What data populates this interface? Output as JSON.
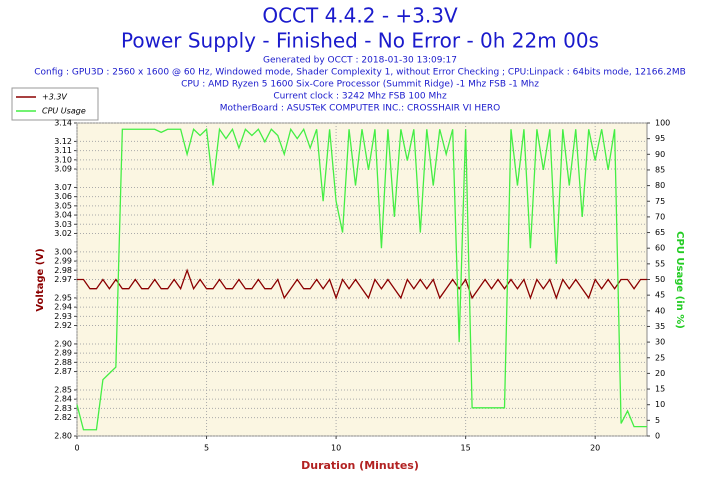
{
  "chart_data": {
    "type": "line",
    "title": [
      "OCCT 4.4.2 - +3.3V",
      "Power Supply - Finished - No Error - 0h 22m 00s"
    ],
    "subtitle": [
      "Generated by OCCT : 2018-01-30 13:09:17",
      "Config : GPU3D : 2560 x 1600 @ 60 Hz, Windowed mode, Shader Complexity 1, without Error Checking ; CPU:Linpack : 64bits mode, 12166.2MB",
      "CPU : AMD Ryzen 5 1600 Six-Core Processor (Summit Ridge) -1 Mhz FSB -1 Mhz",
      "Current clock : 3242 Mhz FSB 100 Mhz",
      "MotherBoard : ASUSTeK COMPUTER INC.: CROSSHAIR VI HERO"
    ],
    "xlabel": "Duration (Minutes)",
    "ylabel": "Voltage (V)",
    "y2label": "CPU Usage (in %)",
    "xlim": [
      0,
      22
    ],
    "xticks": [
      0,
      5,
      10,
      15,
      20
    ],
    "ylim": [
      2.8,
      3.14
    ],
    "yticks": [
      {
        "value": 2.8,
        "label": "2.80"
      },
      2.82,
      2.83,
      2.84,
      2.85,
      2.87,
      2.88,
      2.89,
      {
        "value": 2.9,
        "label": "2.90"
      },
      2.92,
      2.93,
      2.94,
      2.95,
      2.97,
      2.98,
      2.99,
      {
        "value": 3.0,
        "label": "3.00"
      },
      3.02,
      3.03,
      3.04,
      3.05,
      3.06,
      3.07,
      3.09,
      {
        "value": 3.1,
        "label": "3.10"
      },
      3.11,
      3.12,
      3.14
    ],
    "y2lim": [
      0,
      100
    ],
    "y2ticks": [
      0,
      5,
      10,
      15,
      20,
      25,
      30,
      35,
      40,
      45,
      50,
      55,
      60,
      65,
      70,
      75,
      80,
      85,
      90,
      95,
      100
    ],
    "grid": true,
    "x": [
      0,
      0.25,
      0.5,
      0.75,
      1,
      1.25,
      1.5,
      1.75,
      2,
      2.25,
      2.5,
      2.75,
      3,
      3.25,
      3.5,
      3.75,
      4,
      4.25,
      4.5,
      4.75,
      5,
      5.25,
      5.5,
      5.75,
      6,
      6.25,
      6.5,
      6.75,
      7,
      7.25,
      7.5,
      7.75,
      8,
      8.25,
      8.5,
      8.75,
      9,
      9.25,
      9.5,
      9.75,
      10,
      10.25,
      10.5,
      10.75,
      11,
      11.25,
      11.5,
      11.75,
      12,
      12.25,
      12.5,
      12.75,
      13,
      13.25,
      13.5,
      13.75,
      14,
      14.25,
      14.5,
      14.75,
      15,
      15.25,
      15.5,
      15.75,
      16,
      16.25,
      16.5,
      16.75,
      17,
      17.25,
      17.5,
      17.75,
      18,
      18.25,
      18.5,
      18.75,
      19,
      19.25,
      19.5,
      19.75,
      20,
      20.25,
      20.5,
      20.75,
      21,
      21.25,
      21.5,
      21.75,
      22
    ],
    "series": [
      {
        "name": "+3.3V",
        "color": "#8b0000",
        "values": [
          2.97,
          2.97,
          2.96,
          2.96,
          2.97,
          2.96,
          2.97,
          2.96,
          2.96,
          2.97,
          2.96,
          2.96,
          2.97,
          2.96,
          2.96,
          2.97,
          2.96,
          2.98,
          2.96,
          2.97,
          2.96,
          2.96,
          2.97,
          2.96,
          2.96,
          2.97,
          2.96,
          2.96,
          2.97,
          2.96,
          2.96,
          2.97,
          2.95,
          2.96,
          2.97,
          2.96,
          2.96,
          2.97,
          2.96,
          2.97,
          2.95,
          2.97,
          2.96,
          2.97,
          2.96,
          2.95,
          2.97,
          2.96,
          2.97,
          2.96,
          2.95,
          2.97,
          2.96,
          2.97,
          2.96,
          2.97,
          2.95,
          2.96,
          2.97,
          2.96,
          2.97,
          2.95,
          2.96,
          2.97,
          2.96,
          2.97,
          2.96,
          2.97,
          2.96,
          2.97,
          2.95,
          2.97,
          2.96,
          2.97,
          2.95,
          2.97,
          2.96,
          2.97,
          2.96,
          2.95,
          2.97,
          2.96,
          2.97,
          2.96,
          2.97,
          2.97,
          2.96,
          2.97,
          2.97
        ]
      },
      {
        "name": "CPU Usage",
        "color": "#44ee44",
        "axis": "y2",
        "values": [
          10,
          2,
          2,
          2,
          18,
          20,
          22,
          98,
          98,
          98,
          98,
          98,
          98,
          97,
          98,
          98,
          98,
          90,
          98,
          96,
          98,
          80,
          98,
          95,
          98,
          92,
          98,
          96,
          98,
          94,
          98,
          96,
          90,
          98,
          95,
          98,
          92,
          98,
          75,
          98,
          75,
          65,
          98,
          80,
          98,
          85,
          98,
          60,
          98,
          70,
          98,
          88,
          98,
          65,
          98,
          80,
          98,
          90,
          98,
          30,
          98,
          9,
          9,
          9,
          9,
          9,
          9,
          98,
          80,
          98,
          60,
          98,
          85,
          98,
          55,
          98,
          80,
          98,
          70,
          98,
          88,
          98,
          85,
          98,
          4,
          8,
          3,
          3,
          3
        ]
      }
    ]
  }
}
